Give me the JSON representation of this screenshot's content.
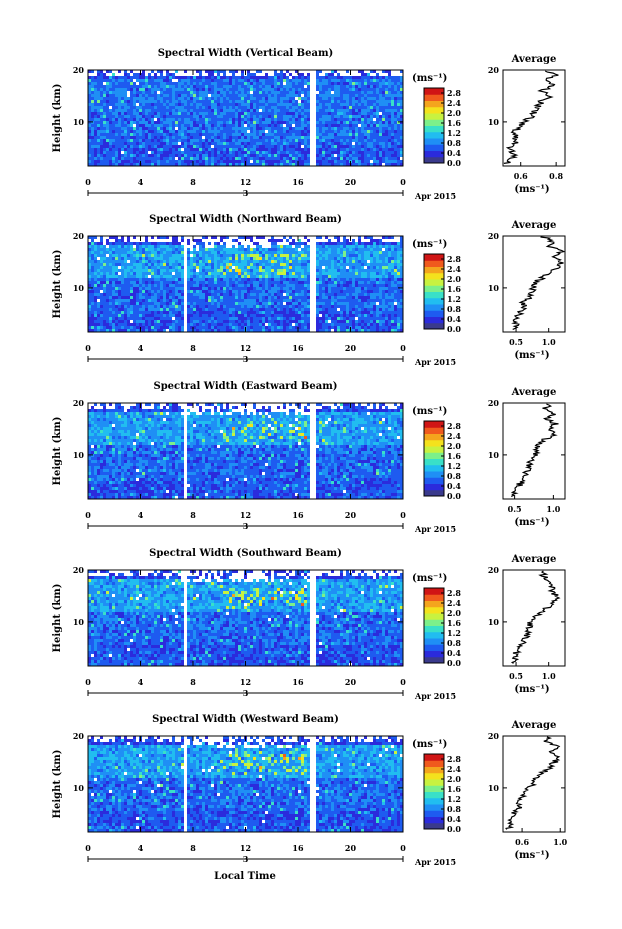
{
  "figure": {
    "xlabel": "Local Time",
    "date_label": "Apr 2015",
    "date_mark": "3",
    "avg_title": "Average",
    "unit_label": "(ms⁻¹)",
    "avg_unit_label": "(ms⁻¹)"
  },
  "palette": [
    "#3a3a8c",
    "#2b2bdc",
    "#1e5bf0",
    "#1f8ff5",
    "#21bdf0",
    "#39e0c8",
    "#7cf08a",
    "#c8f240",
    "#f4e21d",
    "#f4a51d",
    "#f05a1d",
    "#d01515"
  ],
  "chart_data": [
    {
      "type": "heatmap",
      "title": "Spectral Width (Vertical Beam)",
      "xlabel": "Local Time",
      "ylabel": "Height (km)",
      "x": [
        0,
        24
      ],
      "xticks": [
        "0",
        "4",
        "8",
        "12",
        "16",
        "20",
        "0"
      ],
      "ylim": [
        1.5,
        20
      ],
      "yticks": [
        "20",
        "10"
      ],
      "gaps": [
        [
          16.8,
          17.2
        ]
      ],
      "colorbar": {
        "label": "(ms⁻¹)",
        "ticks": [
          "2.8",
          "2.4",
          "2.0",
          "1.6",
          "1.2",
          "0.8",
          "0.4",
          "0.0"
        ],
        "range": [
          0,
          3.0
        ]
      },
      "average": {
        "title": "Average",
        "xlabel": "(ms⁻¹)",
        "xlim": [
          0.5,
          0.85
        ],
        "xticks": [
          "0.6",
          "0.8"
        ],
        "yticks": [
          "20",
          "10"
        ],
        "height": [
          2,
          3,
          4,
          5,
          6,
          7,
          8,
          9,
          10,
          11,
          12,
          13,
          14,
          15,
          16,
          17,
          18,
          19,
          20
        ],
        "width": [
          0.52,
          0.55,
          0.56,
          0.54,
          0.58,
          0.57,
          0.56,
          0.6,
          0.62,
          0.66,
          0.68,
          0.7,
          0.72,
          0.77,
          0.72,
          0.78,
          0.74,
          0.8,
          0.72
        ]
      }
    },
    {
      "type": "heatmap",
      "title": "Spectral Width (Northward Beam)",
      "xlabel": "Local Time",
      "ylabel": "Height (km)",
      "x": [
        0,
        24
      ],
      "xticks": [
        "0",
        "4",
        "8",
        "12",
        "16",
        "20",
        "0"
      ],
      "ylim": [
        1.5,
        20
      ],
      "yticks": [
        "20",
        "10"
      ],
      "gaps": [
        [
          7.1,
          7.4
        ],
        [
          16.8,
          17.2
        ]
      ],
      "colorbar": {
        "label": "(ms⁻¹)",
        "ticks": [
          "2.8",
          "2.4",
          "2.0",
          "1.6",
          "1.2",
          "0.8",
          "0.4",
          "0.0"
        ],
        "range": [
          0,
          3.0
        ]
      },
      "average": {
        "title": "Average",
        "xlabel": "(ms⁻¹)",
        "xlim": [
          0.3,
          1.25
        ],
        "xticks": [
          "0.5",
          "1.0"
        ],
        "yticks": [
          "20",
          "10"
        ],
        "height": [
          2,
          3,
          4,
          5,
          6,
          7,
          8,
          9,
          10,
          11,
          12,
          13,
          14,
          15,
          16,
          17,
          18,
          19,
          20
        ],
        "width": [
          0.45,
          0.5,
          0.48,
          0.55,
          0.62,
          0.6,
          0.68,
          0.72,
          0.76,
          0.8,
          0.9,
          1.05,
          1.15,
          1.2,
          1.1,
          1.18,
          1.02,
          1.05,
          0.9
        ]
      }
    },
    {
      "type": "heatmap",
      "title": "Spectral Width (Eastward Beam)",
      "xlabel": "Local Time",
      "ylabel": "Height (km)",
      "x": [
        0,
        24
      ],
      "xticks": [
        "0",
        "4",
        "8",
        "12",
        "16",
        "20",
        "0"
      ],
      "ylim": [
        1.5,
        20
      ],
      "yticks": [
        "20",
        "10"
      ],
      "gaps": [
        [
          7.1,
          7.4
        ],
        [
          16.8,
          17.2
        ]
      ],
      "colorbar": {
        "label": "(ms⁻¹)",
        "ticks": [
          "2.8",
          "2.4",
          "2.0",
          "1.6",
          "1.2",
          "0.8",
          "0.4",
          "0.0"
        ],
        "range": [
          0,
          3.0
        ]
      },
      "average": {
        "title": "Average",
        "xlabel": "(ms⁻¹)",
        "xlim": [
          0.35,
          1.15
        ],
        "xticks": [
          "0.5",
          "1.0"
        ],
        "yticks": [
          "20",
          "10"
        ],
        "height": [
          2,
          3,
          4,
          5,
          6,
          7,
          8,
          9,
          10,
          11,
          12,
          13,
          14,
          15,
          16,
          17,
          18,
          19,
          20
        ],
        "width": [
          0.45,
          0.5,
          0.55,
          0.6,
          0.62,
          0.66,
          0.7,
          0.72,
          0.76,
          0.78,
          0.82,
          0.9,
          1.0,
          0.95,
          1.02,
          0.92,
          1.0,
          0.9,
          0.95
        ]
      }
    },
    {
      "type": "heatmap",
      "title": "Spectral Width (Southward Beam)",
      "xlabel": "Local Time",
      "ylabel": "Height (km)",
      "x": [
        0,
        24
      ],
      "xticks": [
        "0",
        "4",
        "8",
        "12",
        "16",
        "20",
        "0"
      ],
      "ylim": [
        1.5,
        20
      ],
      "yticks": [
        "20",
        "10"
      ],
      "gaps": [
        [
          7.1,
          7.4
        ],
        [
          16.8,
          17.2
        ]
      ],
      "colorbar": {
        "label": "(ms⁻¹)",
        "ticks": [
          "2.8",
          "2.4",
          "2.0",
          "1.6",
          "1.2",
          "0.8",
          "0.4",
          "0.0"
        ],
        "range": [
          0,
          3.0
        ]
      },
      "average": {
        "title": "Average",
        "xlabel": "(ms⁻¹)",
        "xlim": [
          0.3,
          1.25
        ],
        "xticks": [
          "0.5",
          "1.0"
        ],
        "yticks": [
          "20",
          "10"
        ],
        "height": [
          2,
          3,
          4,
          5,
          6,
          7,
          8,
          9,
          10,
          11,
          12,
          13,
          14,
          15,
          16,
          17,
          18,
          19,
          20
        ],
        "width": [
          0.42,
          0.48,
          0.5,
          0.56,
          0.6,
          0.64,
          0.68,
          0.7,
          0.72,
          0.78,
          0.9,
          1.02,
          1.1,
          1.14,
          1.02,
          1.08,
          0.96,
          0.92,
          0.88
        ]
      }
    },
    {
      "type": "heatmap",
      "title": "Spectral Width (Westward Beam)",
      "xlabel": "Local Time",
      "ylabel": "Height (km)",
      "x": [
        0,
        24
      ],
      "xticks": [
        "0",
        "4",
        "8",
        "12",
        "16",
        "20",
        "0"
      ],
      "ylim": [
        1.5,
        20
      ],
      "yticks": [
        "20",
        "10"
      ],
      "gaps": [
        [
          7.1,
          7.4
        ],
        [
          16.8,
          17.2
        ]
      ],
      "colorbar": {
        "label": "(ms⁻¹)",
        "ticks": [
          "2.8",
          "2.4",
          "2.0",
          "1.6",
          "1.2",
          "0.8",
          "0.4",
          "0.0"
        ],
        "range": [
          0,
          3.0
        ]
      },
      "average": {
        "title": "Average",
        "xlabel": "(ms⁻¹)",
        "xlim": [
          0.4,
          1.05
        ],
        "xticks": [
          "0.6",
          "1.0"
        ],
        "yticks": [
          "20",
          "10"
        ],
        "height": [
          2,
          3,
          4,
          5,
          6,
          7,
          8,
          9,
          10,
          11,
          12,
          13,
          14,
          15,
          16,
          17,
          18,
          19,
          20
        ],
        "width": [
          0.45,
          0.48,
          0.5,
          0.52,
          0.56,
          0.58,
          0.6,
          0.64,
          0.68,
          0.72,
          0.76,
          0.82,
          0.9,
          0.94,
          1.0,
          0.9,
          0.96,
          0.86,
          0.9
        ]
      }
    }
  ]
}
